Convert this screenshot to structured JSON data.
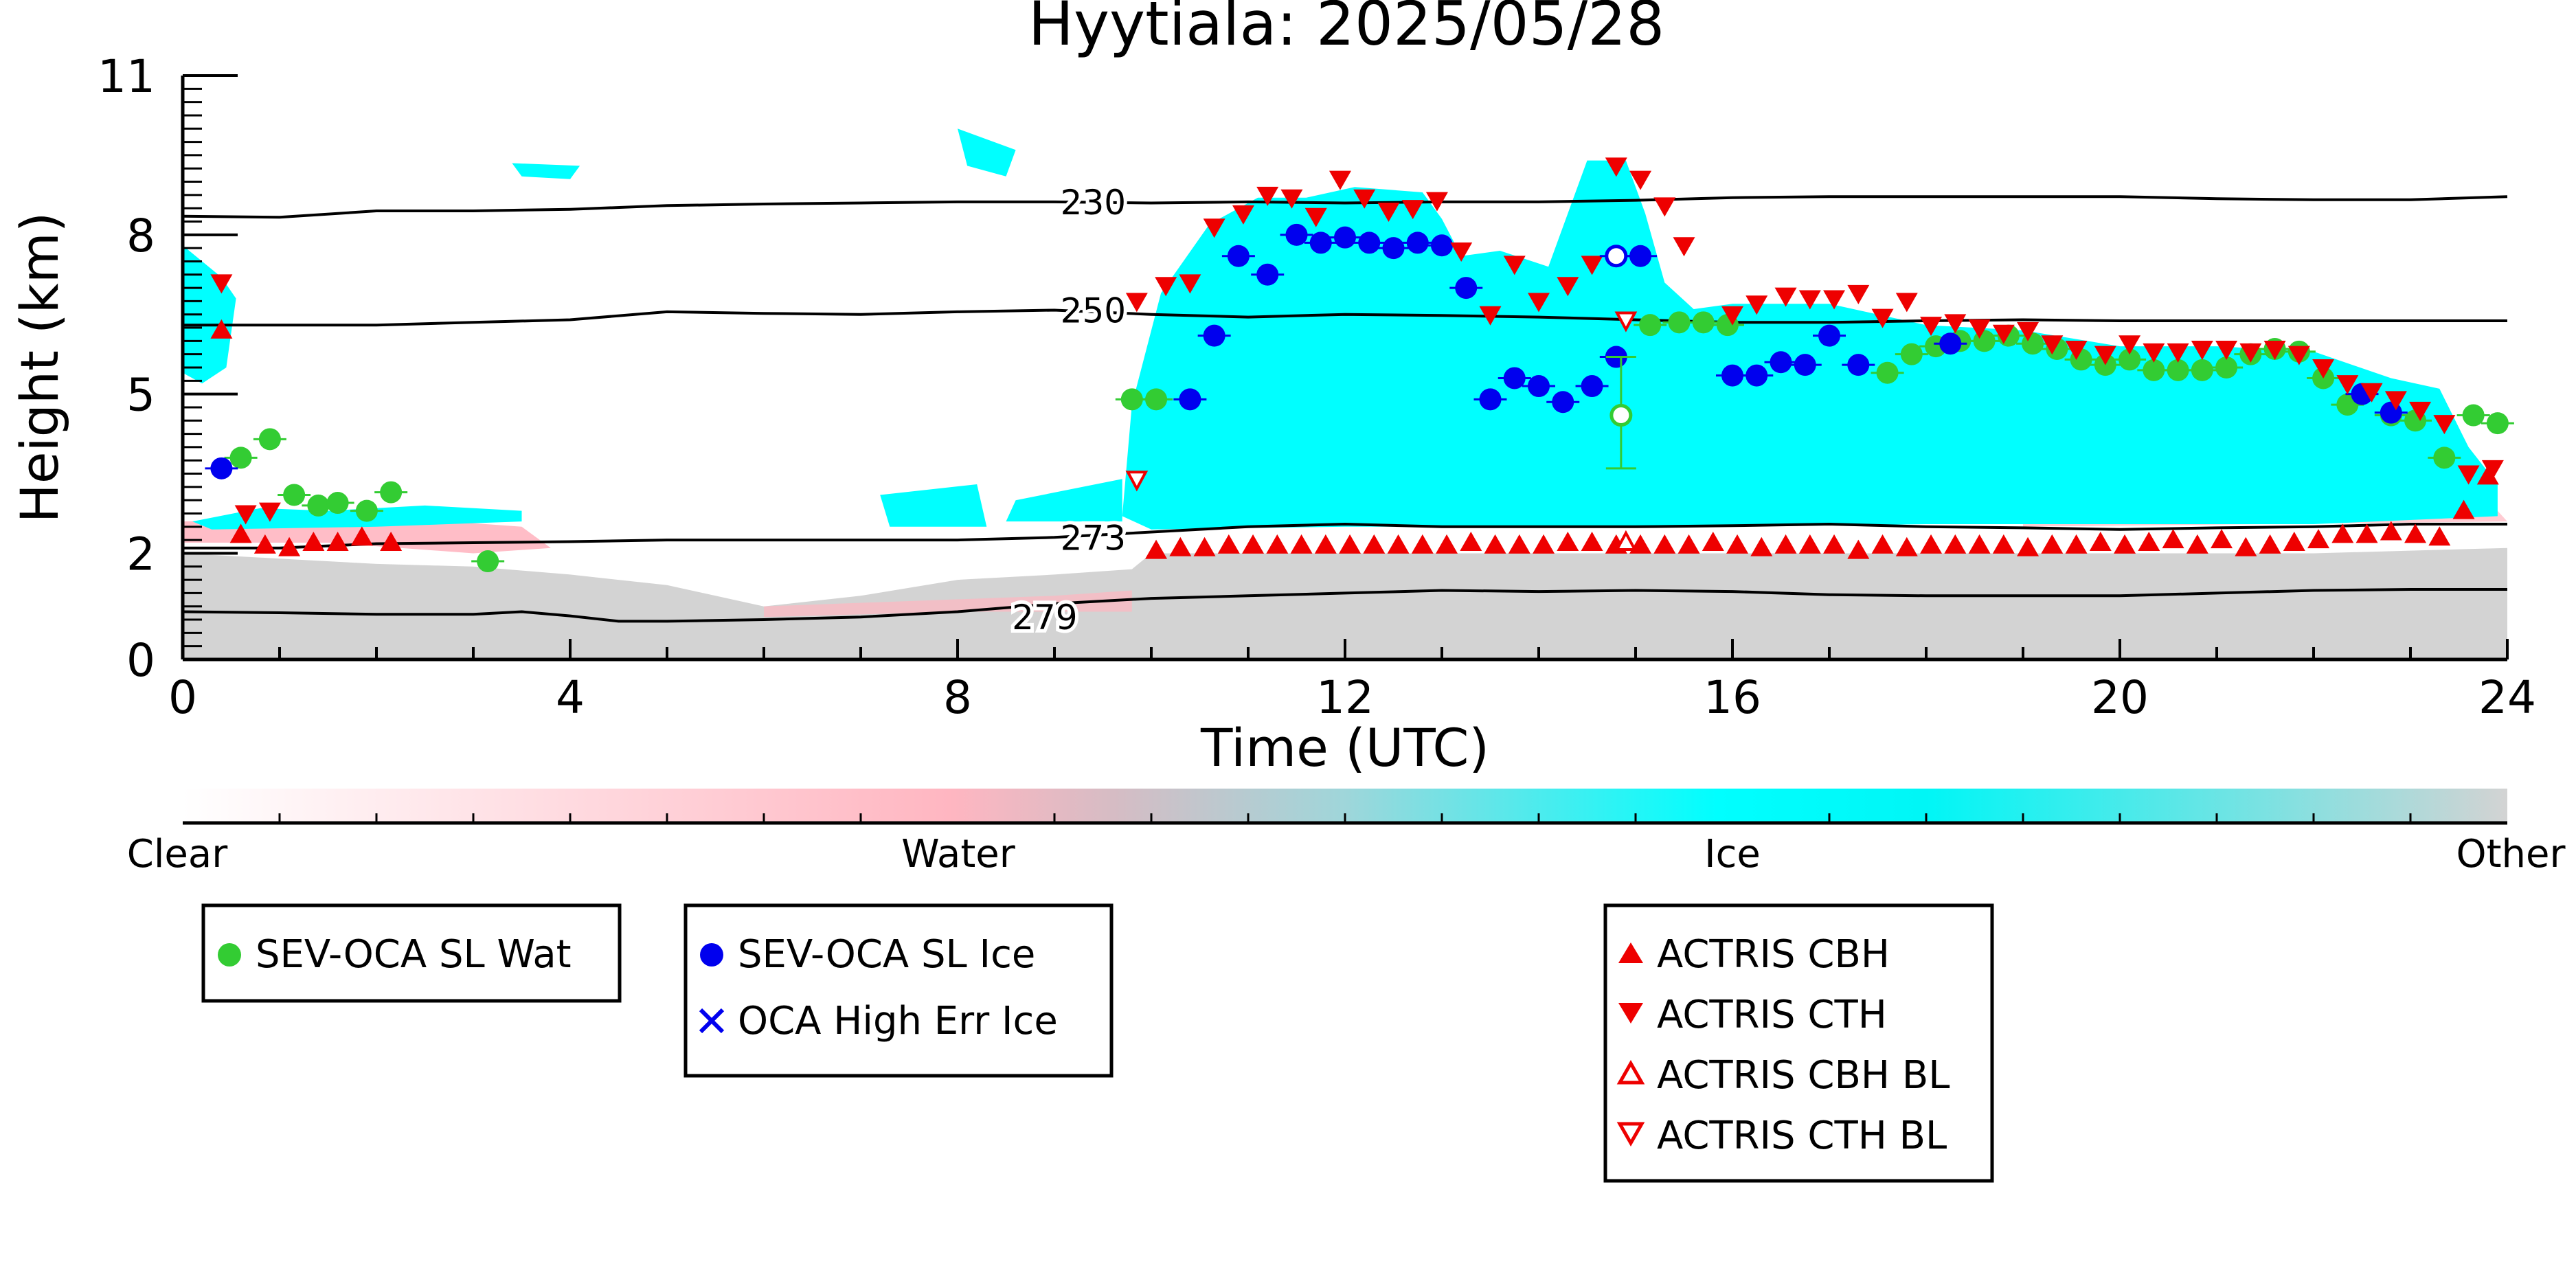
{
  "chart_data": {
    "type": "scatter",
    "title": "Hyytiala: 2025/05/28",
    "xlabel": "Time (UTC)",
    "ylabel": "Height (km)",
    "xlim": [
      0,
      24
    ],
    "ylim": [
      0,
      11
    ],
    "x_ticks": [
      "0",
      "4",
      "8",
      "12",
      "16",
      "20",
      "24"
    ],
    "y_ticks": [
      "0",
      "2",
      "5",
      "8",
      "11"
    ],
    "grid": false,
    "colorbar": {
      "labels": [
        "Clear",
        "Water",
        "Ice",
        "Other"
      ],
      "colors": [
        "#ffffff",
        "#ffb6c1",
        "#00ffff",
        "#d3d3d3"
      ]
    },
    "isotherms": [
      {
        "label": "230",
        "x": [
          0,
          1,
          2,
          3,
          4,
          5,
          6,
          7,
          8,
          9,
          10,
          11,
          12,
          13,
          14,
          15,
          16,
          17,
          18,
          19,
          20,
          21,
          22,
          23,
          24
        ],
        "y": [
          8.35,
          8.33,
          8.45,
          8.45,
          8.48,
          8.55,
          8.58,
          8.6,
          8.62,
          8.62,
          8.6,
          8.62,
          8.6,
          8.62,
          8.62,
          8.65,
          8.7,
          8.72,
          8.72,
          8.72,
          8.72,
          8.68,
          8.66,
          8.66,
          8.72
        ]
      },
      {
        "label": "250",
        "x": [
          0,
          1,
          2,
          3,
          4,
          5,
          6,
          7,
          8,
          9,
          10,
          11,
          12,
          13,
          14,
          15,
          16,
          17,
          18,
          19,
          20,
          21,
          22,
          23,
          24
        ],
        "y": [
          6.3,
          6.3,
          6.3,
          6.35,
          6.4,
          6.55,
          6.52,
          6.5,
          6.55,
          6.58,
          6.5,
          6.45,
          6.5,
          6.48,
          6.45,
          6.4,
          6.35,
          6.35,
          6.38,
          6.4,
          6.38,
          6.38,
          6.38,
          6.38,
          6.38
        ]
      },
      {
        "label": "273",
        "x": [
          0,
          1,
          2,
          3,
          4,
          5,
          6,
          7,
          8,
          9,
          10,
          11,
          12,
          13,
          14,
          15,
          16,
          17,
          18,
          19,
          20,
          21,
          22,
          23,
          24
        ],
        "y": [
          2.1,
          2.1,
          2.18,
          2.2,
          2.22,
          2.25,
          2.25,
          2.25,
          2.25,
          2.3,
          2.4,
          2.5,
          2.55,
          2.5,
          2.5,
          2.5,
          2.52,
          2.55,
          2.5,
          2.48,
          2.45,
          2.48,
          2.5,
          2.55,
          2.55
        ]
      },
      {
        "label": "279",
        "x": [
          0,
          1,
          2,
          3,
          3.5,
          4,
          4.5,
          5,
          6,
          7,
          8,
          9,
          10,
          11,
          12,
          13,
          14,
          15,
          16,
          17,
          18,
          19,
          20,
          21,
          22,
          23,
          24
        ],
        "y": [
          0.9,
          0.88,
          0.85,
          0.85,
          0.9,
          0.82,
          0.72,
          0.72,
          0.75,
          0.8,
          0.9,
          1.05,
          1.15,
          1.2,
          1.25,
          1.3,
          1.28,
          1.3,
          1.28,
          1.22,
          1.2,
          1.2,
          1.2,
          1.25,
          1.3,
          1.32,
          1.32
        ]
      }
    ],
    "series": [
      {
        "name": "SEV-OCA SL Wat",
        "color": "#33cc33",
        "marker": "circle",
        "x": [
          0.6,
          0.9,
          1.15,
          1.4,
          1.6,
          1.9,
          2.15,
          3.15,
          9.8,
          10.05,
          15.15,
          15.45,
          15.7,
          15.95,
          17.6,
          17.85,
          18.1,
          18.35,
          18.6,
          18.85,
          19.1,
          19.35,
          19.6,
          19.85,
          20.1,
          20.35,
          20.6,
          20.85,
          21.1,
          21.35,
          21.6,
          21.85,
          22.1,
          22.35,
          22.8,
          23.05,
          23.35,
          23.65,
          23.9
        ],
        "y": [
          3.8,
          4.15,
          3.1,
          2.9,
          2.95,
          2.8,
          3.15,
          1.85,
          4.9,
          4.9,
          6.3,
          6.35,
          6.35,
          6.3,
          5.4,
          5.75,
          5.9,
          6.0,
          6.0,
          6.1,
          5.95,
          5.85,
          5.65,
          5.55,
          5.65,
          5.45,
          5.45,
          5.45,
          5.5,
          5.75,
          5.85,
          5.8,
          5.3,
          4.8,
          4.6,
          4.5,
          3.8,
          4.6,
          4.45
        ]
      },
      {
        "name": "SEV-OCA SL Ice",
        "color": "#0000ee",
        "marker": "circle",
        "x": [
          0.4,
          10.4,
          10.65,
          10.9,
          11.2,
          11.5,
          11.75,
          12.0,
          12.25,
          12.5,
          12.75,
          13.0,
          13.25,
          13.5,
          13.75,
          14.0,
          14.25,
          14.55,
          14.8,
          15.05,
          16.0,
          16.25,
          16.5,
          16.75,
          17.0,
          17.3,
          18.25,
          22.5,
          22.8
        ],
        "y": [
          3.6,
          4.9,
          6.1,
          7.6,
          7.25,
          8.0,
          7.85,
          7.95,
          7.85,
          7.75,
          7.85,
          7.8,
          7.0,
          4.9,
          5.3,
          5.15,
          4.85,
          5.15,
          5.7,
          7.6,
          5.35,
          5.35,
          5.6,
          5.55,
          6.1,
          5.55,
          5.95,
          5.0,
          4.65
        ]
      },
      {
        "name": "OCA High Err Ice",
        "color": "#0000ee",
        "marker": "x",
        "x": [],
        "y": []
      },
      {
        "name": "ACTRIS CBH",
        "color": "#ee0000",
        "marker": "triangle-up",
        "x": [
          0.4,
          0.6,
          0.85,
          1.1,
          1.35,
          1.6,
          1.85,
          2.15,
          10.05,
          10.3,
          10.55,
          10.8,
          11.05,
          11.3,
          11.55,
          11.8,
          12.05,
          12.3,
          12.55,
          12.8,
          13.05,
          13.3,
          13.55,
          13.8,
          14.05,
          14.3,
          14.55,
          14.8,
          15.05,
          15.3,
          15.55,
          15.8,
          16.05,
          16.3,
          16.55,
          16.8,
          17.05,
          17.3,
          17.55,
          17.8,
          18.05,
          18.3,
          18.55,
          18.8,
          19.05,
          19.3,
          19.55,
          19.8,
          20.05,
          20.3,
          20.55,
          20.8,
          21.05,
          21.3,
          21.55,
          21.8,
          22.05,
          22.3,
          22.55,
          22.8,
          23.05,
          23.3,
          23.55,
          23.8
        ],
        "y": [
          6.2,
          2.35,
          2.15,
          2.1,
          2.2,
          2.2,
          2.3,
          2.2,
          2.05,
          2.1,
          2.1,
          2.15,
          2.15,
          2.15,
          2.15,
          2.15,
          2.15,
          2.15,
          2.15,
          2.15,
          2.15,
          2.2,
          2.15,
          2.15,
          2.15,
          2.2,
          2.2,
          2.15,
          2.15,
          2.15,
          2.15,
          2.2,
          2.15,
          2.1,
          2.15,
          2.15,
          2.15,
          2.05,
          2.15,
          2.1,
          2.15,
          2.15,
          2.15,
          2.15,
          2.1,
          2.15,
          2.15,
          2.2,
          2.15,
          2.2,
          2.25,
          2.15,
          2.25,
          2.1,
          2.15,
          2.2,
          2.25,
          2.35,
          2.35,
          2.4,
          2.35,
          2.3,
          2.8,
          3.45
        ]
      },
      {
        "name": "ACTRIS CTH",
        "color": "#ee0000",
        "marker": "triangle-down",
        "x": [
          0.4,
          0.65,
          0.9,
          9.85,
          10.15,
          10.4,
          10.65,
          10.95,
          11.2,
          11.45,
          11.7,
          11.95,
          12.2,
          12.45,
          12.7,
          12.95,
          13.2,
          13.5,
          13.75,
          14.0,
          14.3,
          14.55,
          14.8,
          15.05,
          15.3,
          15.5,
          16.0,
          16.25,
          16.55,
          16.8,
          17.05,
          17.3,
          17.55,
          17.8,
          18.05,
          18.3,
          18.55,
          18.8,
          19.05,
          19.3,
          19.55,
          19.85,
          20.1,
          20.35,
          20.6,
          20.85,
          21.1,
          21.35,
          21.6,
          21.85,
          22.1,
          22.35,
          22.6,
          22.85,
          23.1,
          23.35,
          23.6,
          23.85
        ],
        "y": [
          7.1,
          2.75,
          2.8,
          6.75,
          7.05,
          7.1,
          8.15,
          8.4,
          8.75,
          8.7,
          8.35,
          9.05,
          8.7,
          8.45,
          8.5,
          8.65,
          7.7,
          6.5,
          7.45,
          6.75,
          7.05,
          7.45,
          9.3,
          9.05,
          8.55,
          7.8,
          6.5,
          6.7,
          6.85,
          6.8,
          6.8,
          6.9,
          6.45,
          6.75,
          6.3,
          6.35,
          6.25,
          6.15,
          6.2,
          5.95,
          5.85,
          5.75,
          5.95,
          5.8,
          5.8,
          5.85,
          5.85,
          5.8,
          5.85,
          5.75,
          5.5,
          5.2,
          5.05,
          4.9,
          4.7,
          4.45,
          3.5,
          3.6
        ]
      },
      {
        "name": "ACTRIS CBH BL",
        "color": "#ee0000",
        "marker": "triangle-up-open",
        "x": [
          14.9
        ],
        "y": [
          2.2
        ]
      },
      {
        "name": "ACTRIS CTH BL",
        "color": "#ee0000",
        "marker": "triangle-down-open",
        "x": [
          9.85,
          14.9
        ],
        "y": [
          3.4,
          6.4
        ]
      }
    ],
    "open_markers": [
      {
        "x": 14.8,
        "y": 7.6,
        "color": "#0000ee",
        "label": "SEV-OCA SL Ice"
      },
      {
        "x": 14.85,
        "y": 4.6,
        "color": "#33cc33",
        "error_low": 3.6,
        "error_high": 5.7,
        "label": "SEV-OCA SL Wat"
      }
    ]
  }
}
